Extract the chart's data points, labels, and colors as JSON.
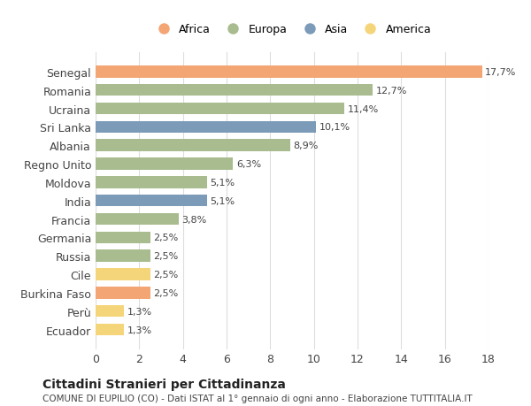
{
  "countries": [
    "Ecuador",
    "Perù",
    "Burkina Faso",
    "Cile",
    "Russia",
    "Germania",
    "Francia",
    "India",
    "Moldova",
    "Regno Unito",
    "Albania",
    "Sri Lanka",
    "Ucraina",
    "Romania",
    "Senegal"
  ],
  "values": [
    1.3,
    1.3,
    2.5,
    2.5,
    2.5,
    2.5,
    3.8,
    5.1,
    5.1,
    6.3,
    8.9,
    10.1,
    11.4,
    12.7,
    17.7
  ],
  "labels": [
    "1,3%",
    "1,3%",
    "2,5%",
    "2,5%",
    "2,5%",
    "2,5%",
    "3,8%",
    "5,1%",
    "5,1%",
    "6,3%",
    "8,9%",
    "10,1%",
    "11,4%",
    "12,7%",
    "17,7%"
  ],
  "continents": [
    "America",
    "America",
    "Africa",
    "America",
    "Europa",
    "Europa",
    "Europa",
    "Asia",
    "Europa",
    "Europa",
    "Europa",
    "Asia",
    "Europa",
    "Europa",
    "Africa"
  ],
  "colors": {
    "Africa": "#F4A574",
    "Europa": "#A8BC8F",
    "Asia": "#7B9BB8",
    "America": "#F5D57A"
  },
  "legend_order": [
    "Africa",
    "Europa",
    "Asia",
    "America"
  ],
  "title": "Cittadini Stranieri per Cittadinanza",
  "subtitle": "COMUNE DI EUPILIO (CO) - Dati ISTAT al 1° gennaio di ogni anno - Elaborazione TUTTITALIA.IT",
  "xlim": [
    0,
    18
  ],
  "xticks": [
    0,
    2,
    4,
    6,
    8,
    10,
    12,
    14,
    16,
    18
  ],
  "background_color": "#ffffff",
  "grid_color": "#dddddd",
  "bar_height": 0.65
}
